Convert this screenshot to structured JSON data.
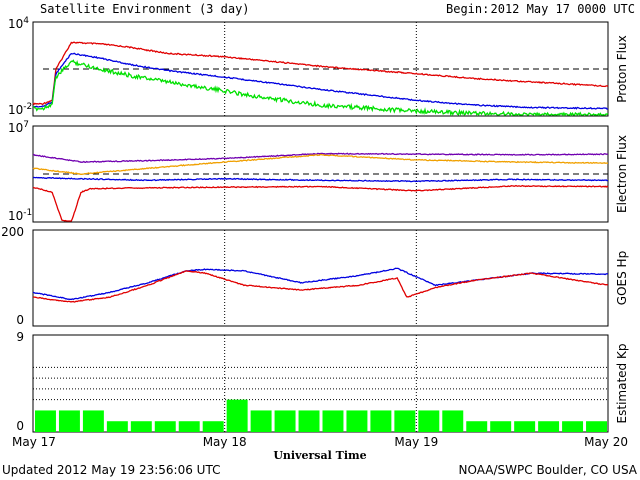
{
  "header": {
    "title": "Satellite Environment (3 day)",
    "begin_label": "Begin:",
    "begin_value": "2012 May 17 0000 UTC"
  },
  "footer": {
    "updated": "Updated 2012 May 19 23:56:06 UTC",
    "source": "NOAA/SWPC Boulder, CO USA"
  },
  "chart_data": [
    {
      "type": "line",
      "ylabel": "Proton Flux",
      "yscale": "log",
      "ylim": [
        0.01,
        10000
      ],
      "ytick_labels": [
        {
          "base": "10",
          "exp": "4",
          "value": 10000
        },
        {
          "base": "10",
          "exp": "-2",
          "value": 0.01
        }
      ],
      "threshold": 10,
      "series": [
        {
          "color": "#e00000",
          "x": [
            0,
            0.05,
            0.1,
            0.12,
            0.2,
            0.35,
            0.5,
            0.7,
            1.0,
            1.2,
            1.5,
            2.0,
            2.3,
            2.6,
            3.0
          ],
          "values": [
            0.06,
            0.06,
            0.1,
            10,
            500,
            400,
            250,
            100,
            60,
            35,
            15,
            5,
            2.5,
            1.5,
            0.8
          ]
        },
        {
          "color": "#0000e0",
          "x": [
            0,
            0.05,
            0.1,
            0.12,
            0.2,
            0.35,
            0.5,
            0.7,
            1.0,
            1.2,
            1.5,
            2.0,
            2.3,
            2.6,
            3.0
          ],
          "values": [
            0.04,
            0.04,
            0.08,
            5,
            100,
            50,
            20,
            8,
            3,
            1.5,
            0.5,
            0.1,
            0.05,
            0.035,
            0.03
          ]
        },
        {
          "color": "#00e000",
          "x": [
            0,
            0.05,
            0.1,
            0.12,
            0.2,
            0.35,
            0.5,
            0.7,
            1.0,
            1.2,
            1.5,
            2.0,
            2.3,
            2.6,
            3.0
          ],
          "values": [
            0.03,
            0.03,
            0.06,
            3,
            30,
            10,
            4,
            1.5,
            0.4,
            0.15,
            0.05,
            0.02,
            0.015,
            0.012,
            0.012
          ]
        }
      ],
      "grid": "dotted verticals at day boundaries"
    },
    {
      "type": "line",
      "ylabel": "Electron Flux",
      "yscale": "log",
      "ylim": [
        0.1,
        10000000
      ],
      "ytick_labels": [
        {
          "base": "10",
          "exp": "7",
          "value": 10000000
        },
        {
          "base": "10",
          "exp": "-1",
          "value": 0.1
        }
      ],
      "threshold": 1000,
      "series": [
        {
          "color": "#7000b0",
          "x": [
            0,
            0.25,
            0.6,
            1.0,
            1.5,
            2.0,
            2.5,
            3.0
          ],
          "values": [
            40000,
            10000,
            13000,
            20000,
            50000,
            45000,
            40000,
            45000
          ]
        },
        {
          "color": "#f0a000",
          "x": [
            0,
            0.25,
            0.6,
            1.0,
            1.5,
            2.0,
            2.5,
            3.0
          ],
          "values": [
            3000,
            1000,
            3000,
            10000,
            40000,
            15000,
            10000,
            8000
          ]
        },
        {
          "color": "#0000e0",
          "x": [
            0,
            0.25,
            0.6,
            1.0,
            1.5,
            2.0,
            2.5,
            3.0
          ],
          "values": [
            500,
            400,
            300,
            400,
            300,
            250,
            350,
            300
          ]
        },
        {
          "color": "#e00000",
          "x": [
            0,
            0.1,
            0.15,
            0.2,
            0.25,
            0.3,
            0.6,
            1.0,
            1.5,
            2.0,
            2.5,
            3.0
          ],
          "values": [
            80,
            30,
            0.15,
            0.1,
            30,
            60,
            70,
            80,
            90,
            40,
            100,
            90
          ]
        }
      ]
    },
    {
      "type": "line",
      "ylabel": "GOES Hp",
      "ylim": [
        0,
        200
      ],
      "ytick_labels": [
        "200",
        "0"
      ],
      "series": [
        {
          "color": "#0000e0",
          "x": [
            0,
            0.2,
            0.4,
            0.6,
            0.8,
            0.9,
            1.1,
            1.4,
            1.7,
            1.9,
            2.1,
            2.3,
            2.6,
            3.0
          ],
          "values": [
            70,
            55,
            70,
            90,
            115,
            118,
            115,
            90,
            105,
            120,
            85,
            95,
            110,
            108
          ]
        },
        {
          "color": "#e00000",
          "x": [
            0,
            0.2,
            0.4,
            0.6,
            0.8,
            0.9,
            1.1,
            1.4,
            1.7,
            1.9,
            1.95,
            2.1,
            2.3,
            2.6,
            3.0
          ],
          "values": [
            60,
            50,
            60,
            85,
            115,
            110,
            85,
            75,
            85,
            100,
            60,
            80,
            95,
            110,
            85
          ]
        }
      ]
    },
    {
      "type": "bar",
      "ylabel": "Estimated Kp",
      "ylim": [
        0,
        9
      ],
      "ytick_labels": [
        "9",
        "0"
      ],
      "color": "#00ff00",
      "bar_width_hours": 3,
      "values": [
        2,
        2,
        2,
        1,
        1,
        1,
        1,
        1,
        3,
        2,
        2,
        2,
        2,
        2,
        2,
        2,
        2,
        2,
        1,
        1,
        1,
        1,
        1,
        1
      ]
    }
  ],
  "x_axis": {
    "label": "Universal Time",
    "ticks": [
      "May 17",
      "May 18",
      "May 19",
      "May 20"
    ],
    "range_days": [
      0,
      3
    ]
  }
}
